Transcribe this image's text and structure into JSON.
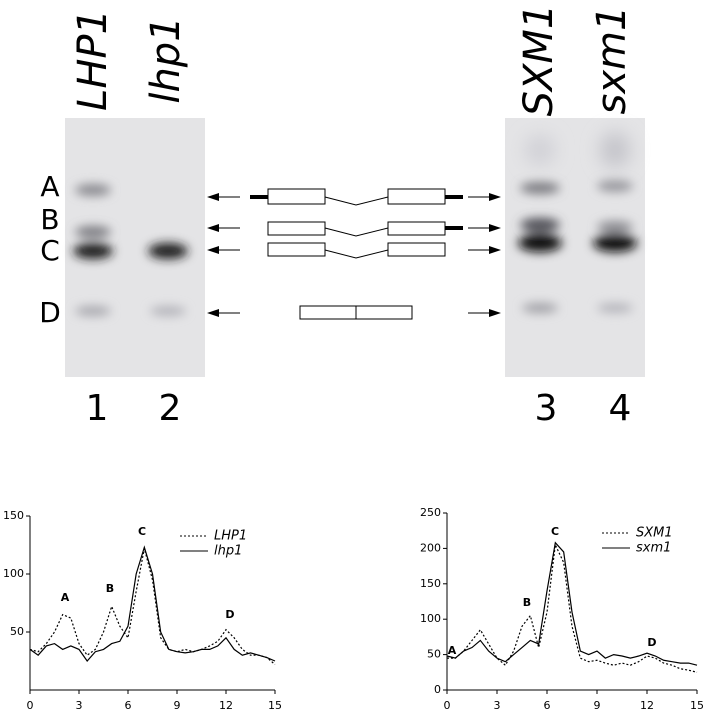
{
  "gel": {
    "lane_headers": [
      "LHP1",
      "lhp1",
      "SXM1",
      "sxm1"
    ],
    "rows": [
      "A",
      "B",
      "C",
      "D"
    ],
    "lane_numbers": [
      "1",
      "2",
      "3",
      "4"
    ]
  },
  "chart_data": [
    {
      "type": "line",
      "xlim": [
        0,
        15
      ],
      "xticks": [
        0,
        3,
        6,
        9,
        12,
        15
      ],
      "ylim": [
        0,
        150
      ],
      "yticks": [
        50,
        100,
        150
      ],
      "annotations": [
        "A",
        "B",
        "C",
        "D"
      ],
      "x": [
        0,
        0.5,
        1,
        1.5,
        2,
        2.5,
        3,
        3.5,
        4,
        4.5,
        5,
        5.5,
        6,
        6.5,
        7,
        7.5,
        8,
        8.5,
        9,
        9.5,
        10,
        10.5,
        11,
        11.5,
        12,
        12.5,
        13,
        13.5,
        14,
        14.5,
        15
      ],
      "series": [
        {
          "name": "LHP1",
          "color": "#000",
          "style": "dotted",
          "values": [
            35,
            33,
            40,
            50,
            65,
            62,
            40,
            30,
            35,
            50,
            72,
            55,
            45,
            85,
            122,
            95,
            45,
            35,
            33,
            35,
            33,
            35,
            38,
            42,
            52,
            45,
            35,
            30,
            30,
            28,
            22
          ]
        },
        {
          "name": "lhp1",
          "color": "#000",
          "style": "solid",
          "values": [
            35,
            30,
            38,
            40,
            35,
            38,
            35,
            25,
            33,
            35,
            40,
            42,
            55,
            100,
            123,
            100,
            50,
            35,
            33,
            32,
            33,
            35,
            35,
            38,
            45,
            35,
            30,
            32,
            30,
            28,
            25
          ]
        }
      ]
    },
    {
      "type": "line",
      "xlim": [
        0,
        15
      ],
      "xticks": [
        0,
        3,
        6,
        9,
        12,
        15
      ],
      "ylim": [
        0,
        250
      ],
      "yticks": [
        0,
        50,
        100,
        150,
        200,
        250
      ],
      "annotations": [
        "A",
        "B",
        "C",
        "D"
      ],
      "x": [
        0,
        0.5,
        1,
        1.5,
        2,
        2.5,
        3,
        3.5,
        4,
        4.5,
        5,
        5.5,
        6,
        6.5,
        7,
        7.5,
        8,
        8.5,
        9,
        9.5,
        10,
        10.5,
        11,
        11.5,
        12,
        12.5,
        13,
        13.5,
        14,
        14.5,
        15
      ],
      "series": [
        {
          "name": "SXM1",
          "color": "#000",
          "style": "dotted",
          "values": [
            45,
            45,
            55,
            70,
            85,
            65,
            45,
            35,
            55,
            90,
            105,
            60,
            110,
            205,
            180,
            90,
            45,
            40,
            42,
            38,
            35,
            38,
            35,
            40,
            48,
            45,
            38,
            35,
            30,
            28,
            25
          ]
        },
        {
          "name": "sxm1",
          "color": "#000",
          "style": "solid",
          "values": [
            48,
            45,
            55,
            60,
            70,
            55,
            45,
            40,
            50,
            60,
            70,
            65,
            140,
            208,
            195,
            110,
            55,
            50,
            55,
            45,
            50,
            48,
            45,
            48,
            52,
            48,
            42,
            40,
            38,
            38,
            35
          ]
        }
      ]
    }
  ]
}
